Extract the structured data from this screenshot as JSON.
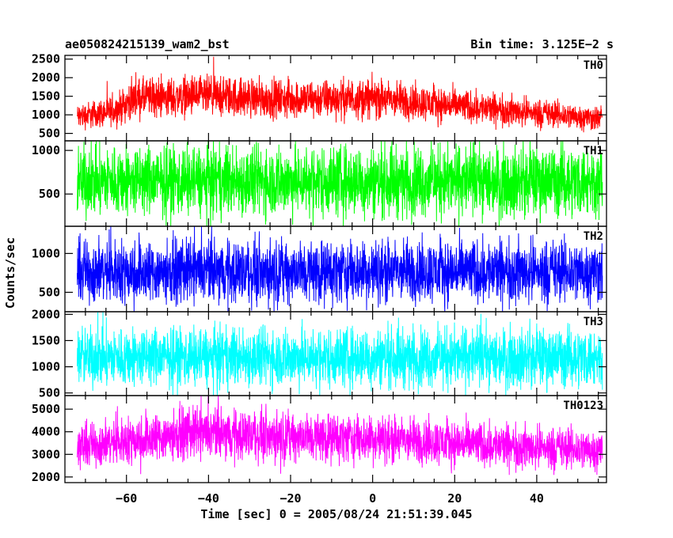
{
  "header": {
    "title": "ae050824215139_wam2_bst",
    "bin_time": "Bin time: 3.125E−2 s"
  },
  "chart_data": {
    "type": "line",
    "xlabel": "Time [sec] 0 = 2005/08/24 21:51:39.045",
    "ylabel": "Counts/sec",
    "xlim": [
      -75,
      57
    ],
    "xticks": [
      -60,
      -40,
      -20,
      0,
      20,
      40
    ],
    "bin_time_s": 0.03125,
    "panels": [
      {
        "name": "TH0",
        "color": "#ff0000",
        "ylim": [
          300,
          2600
        ],
        "yticks": [
          500,
          1000,
          1500,
          2000,
          2500
        ],
        "baseline_profile": [
          [
            -72,
            950
          ],
          [
            -63,
            1100
          ],
          [
            -58,
            1450
          ],
          [
            -40,
            1500
          ],
          [
            -20,
            1420
          ],
          [
            0,
            1450
          ],
          [
            5,
            1400
          ],
          [
            20,
            1250
          ],
          [
            40,
            1050
          ],
          [
            56,
            900
          ]
        ],
        "noise_halfwidth_fraction": 0.38
      },
      {
        "name": "TH1",
        "color": "#00ff00",
        "ylim": [
          130,
          1110
        ],
        "yticks": [
          500,
          1000
        ],
        "baseline_profile": [
          [
            -72,
            650
          ],
          [
            56,
            650
          ]
        ],
        "noise_halfwidth_fraction": 0.65
      },
      {
        "name": "TH2",
        "color": "#0000ff",
        "ylim": [
          250,
          1350
        ],
        "yticks": [
          500,
          1000
        ],
        "baseline_profile": [
          [
            -72,
            770
          ],
          [
            56,
            770
          ]
        ],
        "noise_halfwidth_fraction": 0.55
      },
      {
        "name": "TH3",
        "color": "#00ffff",
        "ylim": [
          450,
          2050
        ],
        "yticks": [
          500,
          1000,
          1500,
          2000
        ],
        "baseline_profile": [
          [
            -72,
            1180
          ],
          [
            56,
            1180
          ]
        ],
        "noise_halfwidth_fraction": 0.5
      },
      {
        "name": "TH0123",
        "color": "#ff00ff",
        "ylim": [
          1750,
          5600
        ],
        "yticks": [
          2000,
          3000,
          4000,
          5000
        ],
        "baseline_profile": [
          [
            -72,
            3350
          ],
          [
            -60,
            3600
          ],
          [
            -45,
            3950
          ],
          [
            -20,
            3800
          ],
          [
            0,
            3700
          ],
          [
            20,
            3500
          ],
          [
            40,
            3300
          ],
          [
            56,
            3200
          ]
        ],
        "noise_halfwidth_fraction": 0.3
      }
    ]
  }
}
